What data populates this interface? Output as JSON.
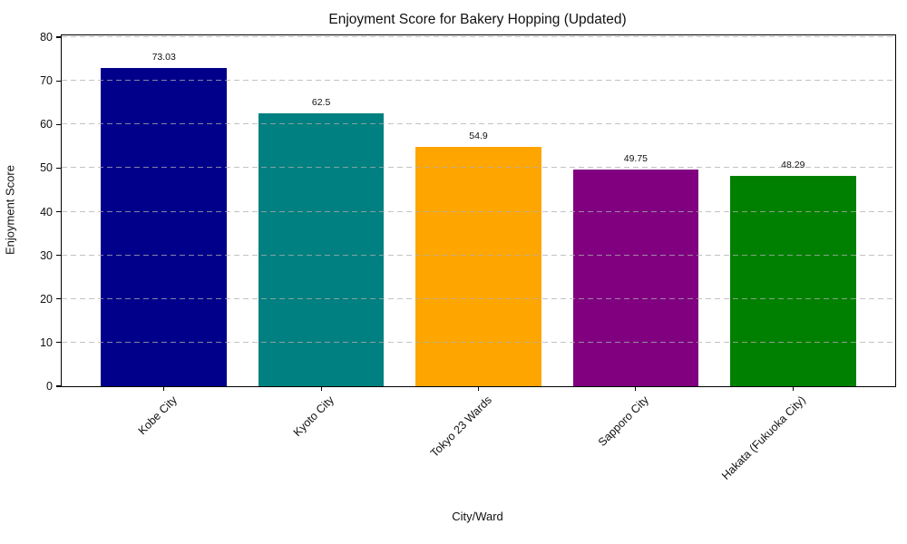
{
  "chart_data": {
    "type": "bar",
    "title": "Enjoyment Score for Bakery Hopping (Updated)",
    "xlabel": "City/Ward",
    "ylabel": "Enjoyment Score",
    "categories": [
      "Kobe City",
      "Kyoto City",
      "Tokyo 23 Wards",
      "Sapporo City",
      "Hakata (Fukuoka City)"
    ],
    "values": [
      73.03,
      62.5,
      54.9,
      49.75,
      48.29
    ],
    "value_labels": [
      "73.03",
      "62.5",
      "54.9",
      "49.75",
      "48.29"
    ],
    "bar_colors": [
      "#00008B",
      "#008080",
      "#FFA500",
      "#800080",
      "#008000"
    ],
    "ylim": [
      0,
      80
    ],
    "yticks": [
      0,
      10,
      20,
      30,
      40,
      50,
      60,
      70,
      80
    ],
    "grid": "horizontal dashed gridlines, drawn over bars",
    "legend": "none"
  },
  "colors": {
    "background": "#ffffff",
    "axis": "#000000",
    "grid": "#afafaf",
    "text": "#111111"
  }
}
